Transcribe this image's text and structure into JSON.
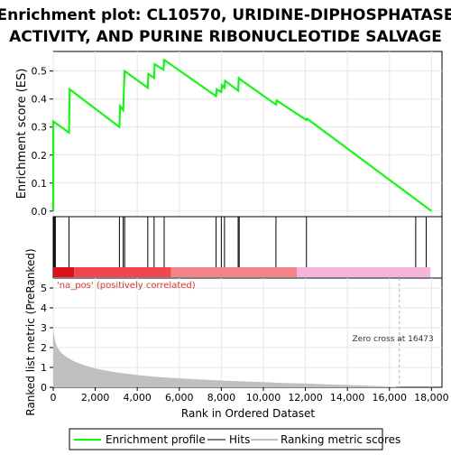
{
  "chart_data": {
    "type": "line",
    "title": "Enrichment plot: CL10570, URIDINE-DIPHOSPHATASE ACTIVITY, AND PURINE RIBONUCLEOTIDE SALVAGE",
    "title_lines": [
      "Enrichment plot: CL10570, URIDINE-DIPHOSPHATASE",
      "ACTIVITY, AND PURINE RIBONUCLEOTIDE SALVAGE"
    ],
    "es_panel": {
      "ylabel": "Enrichment score (ES)",
      "ylim": [
        -0.02,
        0.57
      ],
      "yticks": [
        0.0,
        0.1,
        0.2,
        0.3,
        0.4,
        0.5
      ],
      "ytick_labels": [
        "0.0",
        "0.1",
        "0.2",
        "0.3",
        "0.4",
        "0.5"
      ],
      "line_color": "#00ff00",
      "points": [
        [
          0,
          0.0
        ],
        [
          5,
          0.32
        ],
        [
          750,
          0.28
        ],
        [
          780,
          0.435
        ],
        [
          3150,
          0.3
        ],
        [
          3180,
          0.375
        ],
        [
          3330,
          0.36
        ],
        [
          3360,
          0.43
        ],
        [
          3400,
          0.5
        ],
        [
          4500,
          0.44
        ],
        [
          4530,
          0.49
        ],
        [
          4800,
          0.475
        ],
        [
          4830,
          0.525
        ],
        [
          5250,
          0.505
        ],
        [
          5280,
          0.54
        ],
        [
          7750,
          0.41
        ],
        [
          7780,
          0.435
        ],
        [
          8000,
          0.425
        ],
        [
          8030,
          0.45
        ],
        [
          8150,
          0.44
        ],
        [
          8180,
          0.465
        ],
        [
          8800,
          0.43
        ],
        [
          8830,
          0.475
        ],
        [
          8900,
          0.47
        ],
        [
          10600,
          0.38
        ],
        [
          10630,
          0.395
        ],
        [
          12050,
          0.325
        ],
        [
          12080,
          0.33
        ],
        [
          18000,
          0.0
        ]
      ]
    },
    "hits": [
      20,
      60,
      100,
      750,
      3150,
      3330,
      3400,
      4500,
      4800,
      5280,
      7750,
      8000,
      8150,
      8800,
      8850,
      10600,
      12050,
      17250,
      17750
    ],
    "bar": {
      "segments": [
        {
          "from": 0,
          "to": 1000,
          "color": "#dd0f1d"
        },
        {
          "from": 1000,
          "to": 5600,
          "color": "#f04650"
        },
        {
          "from": 5600,
          "to": 11600,
          "color": "#f48489"
        },
        {
          "from": 11600,
          "to": 17950,
          "color": "#f7b5db"
        }
      ]
    },
    "metric_panel": {
      "ylabel": "Ranked list metric (PreRanked)",
      "xlabel": "Rank in Ordered Dataset",
      "ylim": [
        0,
        5.5
      ],
      "yticks": [
        0,
        1,
        2,
        3,
        4,
        5
      ],
      "ytick_labels": [
        "0",
        "1",
        "2",
        "3",
        "4",
        "5"
      ],
      "xlim": [
        0,
        18500
      ],
      "xticks": [
        0,
        2000,
        4000,
        6000,
        8000,
        10000,
        12000,
        14000,
        16000,
        18000
      ],
      "xtick_labels": [
        "0",
        "2,000",
        "4,000",
        "6,000",
        "8,000",
        "10,000",
        "12,000",
        "14,000",
        "16,000",
        "18,000"
      ],
      "fill_color": "#c0c0c0",
      "curve": [
        [
          0,
          3.1
        ],
        [
          30,
          2.7
        ],
        [
          100,
          2.3
        ],
        [
          200,
          2.0
        ],
        [
          400,
          1.72
        ],
        [
          700,
          1.48
        ],
        [
          1000,
          1.3
        ],
        [
          1500,
          1.1
        ],
        [
          2000,
          0.95
        ],
        [
          3000,
          0.75
        ],
        [
          4000,
          0.62
        ],
        [
          5000,
          0.52
        ],
        [
          6000,
          0.45
        ],
        [
          7000,
          0.39
        ],
        [
          8000,
          0.34
        ],
        [
          9000,
          0.3
        ],
        [
          10000,
          0.26
        ],
        [
          11000,
          0.22
        ],
        [
          12000,
          0.19
        ],
        [
          13000,
          0.15
        ],
        [
          14000,
          0.12
        ],
        [
          15000,
          0.08
        ],
        [
          16000,
          0.04
        ],
        [
          16473,
          0.0
        ]
      ],
      "pos_label": "'na_pos' (positively correlated)",
      "pos_label_color": "#e83030",
      "zero_cross_label": "Zero cross at 16473",
      "zero_cross": 16473
    },
    "legend": [
      {
        "label": "Enrichment profile",
        "color": "#00ff00",
        "kind": "line"
      },
      {
        "label": "Hits",
        "color": "#000000",
        "kind": "line"
      },
      {
        "label": "Ranking metric scores",
        "color": "#c0c0c0",
        "kind": "line"
      }
    ]
  }
}
